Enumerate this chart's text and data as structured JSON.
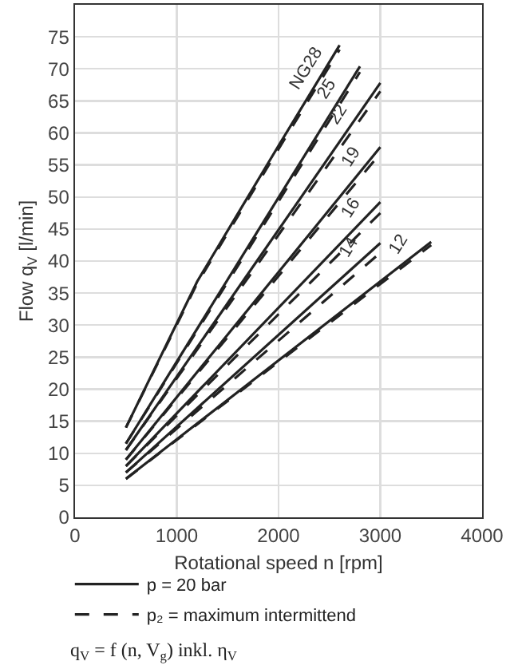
{
  "chart_data": {
    "type": "line",
    "xlabel": "Rotational speed n [rpm]",
    "ylabel": "Flow q$_{V}$ [l/min]",
    "xlim": [
      0,
      4000
    ],
    "xticks": [
      0,
      1000,
      2000,
      3000,
      4000
    ],
    "ylim": [
      0,
      80
    ],
    "yticks": [
      0,
      5,
      10,
      15,
      20,
      25,
      30,
      35,
      40,
      45,
      50,
      55,
      60,
      65,
      70,
      75
    ],
    "grid": true,
    "legend": "bottom",
    "marker": "none",
    "series": [
      {
        "name": "p = 20 bar",
        "color": "#222222",
        "line_style": "solid",
        "x": [
          500,
          1200,
          2000,
          2600
        ],
        "values": [
          14,
          36.8,
          58,
          73.7
        ]
      },
      {
        "color": "#222222",
        "line_style": "solid",
        "x": [
          500,
          2800
        ],
        "values": [
          11.5,
          70.4
        ]
      },
      {
        "color": "#222222",
        "line_style": "solid",
        "x": [
          500,
          3000
        ],
        "values": [
          10.5,
          67.8
        ]
      },
      {
        "color": "#222222",
        "line_style": "solid",
        "x": [
          500,
          3000
        ],
        "values": [
          9,
          57.8
        ]
      },
      {
        "color": "#222222",
        "line_style": "solid",
        "x": [
          500,
          3000
        ],
        "values": [
          8,
          49.2
        ]
      },
      {
        "color": "#222222",
        "line_style": "solid",
        "x": [
          500,
          3000
        ],
        "values": [
          7,
          42.8
        ]
      },
      {
        "color": "#222222",
        "line_style": "solid",
        "x": [
          500,
          3500
        ],
        "values": [
          6,
          43
        ]
      },
      {
        "name": "p₂ = maximum intermittend",
        "color": "#222222",
        "line_style": "dashed",
        "x": [
          500,
          1200,
          2000,
          2600
        ],
        "values": [
          14,
          36.5,
          57.5,
          73
        ]
      },
      {
        "color": "#222222",
        "line_style": "dashed",
        "x": [
          500,
          2800
        ],
        "values": [
          11.5,
          69.5
        ]
      },
      {
        "color": "#222222",
        "line_style": "dashed",
        "x": [
          500,
          3000
        ],
        "values": [
          10.5,
          66.5
        ]
      },
      {
        "color": "#222222",
        "line_style": "dashed",
        "x": [
          500,
          3000
        ],
        "values": [
          9,
          56.8
        ]
      },
      {
        "color": "#222222",
        "line_style": "dashed",
        "x": [
          500,
          3000
        ],
        "values": [
          8,
          47.5
        ]
      },
      {
        "color": "#222222",
        "line_style": "dashed",
        "x": [
          500,
          3000
        ],
        "values": [
          7,
          41.3
        ]
      },
      {
        "color": "#222222",
        "line_style": "dashed",
        "x": [
          500,
          3500
        ],
        "values": [
          6,
          42.5
        ]
      }
    ],
    "annotations": [
      {
        "text": "NG28",
        "x": 2370,
        "y": 67.7
      },
      {
        "text": "25",
        "x": 2570,
        "y": 64.5
      },
      {
        "text": "22",
        "x": 2680,
        "y": 60.5
      },
      {
        "text": "19",
        "x": 2800,
        "y": 53.9
      },
      {
        "text": "16",
        "x": 2800,
        "y": 45.9
      },
      {
        "text": "14",
        "x": 2790,
        "y": 39.8
      },
      {
        "text": "12",
        "x": 3280,
        "y": 40.3
      },
      "q$_{V}$ = f (n, V$_{g}$) inkl. η$_{V}$"
    ]
  }
}
